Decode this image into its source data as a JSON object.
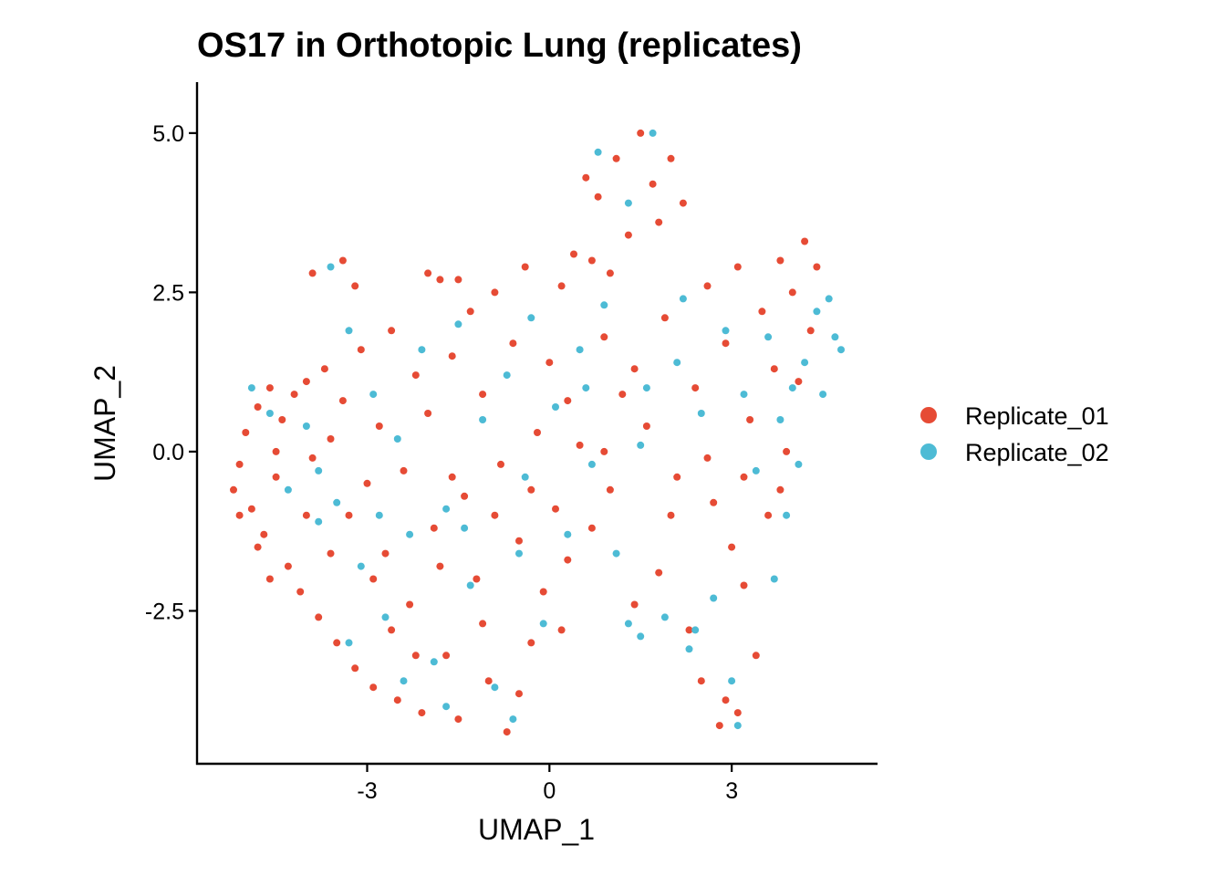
{
  "chart_data": {
    "type": "scatter",
    "title": "OS17 in Orthotopic Lung (replicates)",
    "xlabel": "UMAP_1",
    "ylabel": "UMAP_2",
    "xlim": [
      -5.8,
      5.4
    ],
    "ylim": [
      -4.9,
      5.8
    ],
    "x_ticks": [
      {
        "value": -3,
        "label": "-3"
      },
      {
        "value": 0,
        "label": "0"
      },
      {
        "value": 3,
        "label": "3"
      }
    ],
    "y_ticks": [
      {
        "value": -2.5,
        "label": "-2.5"
      },
      {
        "value": 0,
        "label": "0.0"
      },
      {
        "value": 2.5,
        "label": "2.5"
      },
      {
        "value": 5,
        "label": "5.0"
      }
    ],
    "grid": false,
    "legend_position": "right",
    "series": [
      {
        "name": "Replicate_01",
        "color": "#E64B35",
        "points": [
          [
            -5.2,
            -0.6
          ],
          [
            -5.1,
            -0.2
          ],
          [
            -5.0,
            0.3
          ],
          [
            -4.9,
            -0.9
          ],
          [
            -4.8,
            0.7
          ],
          [
            -4.7,
            -1.3
          ],
          [
            -4.6,
            1.0
          ],
          [
            -4.5,
            -0.4
          ],
          [
            -4.4,
            0.5
          ],
          [
            -4.3,
            -1.8
          ],
          [
            -4.2,
            0.9
          ],
          [
            -4.1,
            -2.2
          ],
          [
            -4.0,
            1.1
          ],
          [
            -3.9,
            -0.1
          ],
          [
            -3.8,
            -2.6
          ],
          [
            -3.7,
            1.3
          ],
          [
            -3.6,
            0.2
          ],
          [
            -3.5,
            -3.0
          ],
          [
            -3.4,
            0.8
          ],
          [
            -3.3,
            -1.0
          ],
          [
            -3.2,
            -3.4
          ],
          [
            -3.1,
            1.6
          ],
          [
            -3.0,
            -0.5
          ],
          [
            -2.9,
            -3.7
          ],
          [
            -2.8,
            0.4
          ],
          [
            -2.7,
            -1.6
          ],
          [
            -2.6,
            1.9
          ],
          [
            -2.5,
            -3.9
          ],
          [
            -2.4,
            -0.3
          ],
          [
            -2.3,
            -2.4
          ],
          [
            -2.2,
            1.2
          ],
          [
            -2.1,
            -4.1
          ],
          [
            -2.0,
            0.6
          ],
          [
            -1.9,
            -1.2
          ],
          [
            -1.8,
            2.7
          ],
          [
            -1.7,
            -3.2
          ],
          [
            -1.6,
            1.5
          ],
          [
            -1.5,
            -4.2
          ],
          [
            -1.4,
            -0.7
          ],
          [
            -1.3,
            2.2
          ],
          [
            -1.2,
            -2.0
          ],
          [
            -1.1,
            0.9
          ],
          [
            -1.0,
            -3.6
          ],
          [
            -0.9,
            2.5
          ],
          [
            -0.8,
            -0.2
          ],
          [
            -0.7,
            -4.4
          ],
          [
            -0.6,
            1.7
          ],
          [
            -0.5,
            -1.4
          ],
          [
            -0.4,
            2.9
          ],
          [
            -0.3,
            -3.0
          ],
          [
            -0.2,
            0.3
          ],
          [
            -0.1,
            -2.2
          ],
          [
            0.0,
            1.4
          ],
          [
            0.1,
            -0.9
          ],
          [
            0.2,
            2.6
          ],
          [
            0.3,
            -1.7
          ],
          [
            0.4,
            3.1
          ],
          [
            0.5,
            0.1
          ],
          [
            0.6,
            4.3
          ],
          [
            0.7,
            -1.2
          ],
          [
            0.8,
            4.0
          ],
          [
            0.9,
            1.8
          ],
          [
            1.0,
            -0.6
          ],
          [
            1.1,
            4.6
          ],
          [
            1.2,
            0.9
          ],
          [
            1.3,
            3.4
          ],
          [
            1.4,
            -2.4
          ],
          [
            1.5,
            5.0
          ],
          [
            1.6,
            0.4
          ],
          [
            1.7,
            4.2
          ],
          [
            1.8,
            -1.9
          ],
          [
            1.9,
            2.1
          ],
          [
            2.0,
            4.6
          ],
          [
            2.1,
            -0.4
          ],
          [
            2.2,
            3.9
          ],
          [
            2.3,
            -2.8
          ],
          [
            2.4,
            1.0
          ],
          [
            2.5,
            -3.6
          ],
          [
            2.6,
            2.6
          ],
          [
            2.7,
            -0.8
          ],
          [
            2.8,
            -4.3
          ],
          [
            2.9,
            1.7
          ],
          [
            3.0,
            -1.5
          ],
          [
            3.1,
            2.9
          ],
          [
            3.2,
            -2.1
          ],
          [
            3.3,
            0.5
          ],
          [
            3.4,
            -3.2
          ],
          [
            3.5,
            2.2
          ],
          [
            3.6,
            -1.0
          ],
          [
            3.7,
            1.3
          ],
          [
            3.8,
            3.0
          ],
          [
            3.9,
            0.0
          ],
          [
            4.0,
            2.5
          ],
          [
            4.1,
            1.1
          ],
          [
            4.2,
            3.3
          ],
          [
            4.3,
            1.9
          ],
          [
            4.4,
            2.9
          ],
          [
            -4.5,
            0.0
          ],
          [
            -3.9,
            2.8
          ],
          [
            -3.4,
            3.0
          ],
          [
            -3.2,
            2.6
          ],
          [
            -2.9,
            -2.0
          ],
          [
            -2.2,
            -3.2
          ],
          [
            -1.6,
            -0.4
          ],
          [
            -0.9,
            -1.0
          ],
          [
            -0.3,
            -0.6
          ],
          [
            0.3,
            0.8
          ],
          [
            0.9,
            0.0
          ],
          [
            1.4,
            1.3
          ],
          [
            2.0,
            -1.0
          ],
          [
            2.6,
            -0.1
          ],
          [
            3.2,
            -0.4
          ],
          [
            3.8,
            -0.6
          ],
          [
            -4.0,
            -1.0
          ],
          [
            -3.6,
            -1.6
          ],
          [
            -2.6,
            -2.8
          ],
          [
            -1.8,
            -1.8
          ],
          [
            -1.1,
            -2.7
          ],
          [
            -0.5,
            -3.8
          ],
          [
            0.2,
            -2.8
          ],
          [
            1.0,
            2.8
          ],
          [
            1.8,
            3.6
          ],
          [
            2.9,
            -3.9
          ],
          [
            3.1,
            -4.1
          ],
          [
            -5.1,
            -1.0
          ],
          [
            -4.8,
            -1.5
          ],
          [
            -4.6,
            -2.0
          ],
          [
            -2.0,
            2.8
          ],
          [
            -1.5,
            2.7
          ],
          [
            0.7,
            3.0
          ]
        ]
      },
      {
        "name": "Replicate_02",
        "color": "#4DBBD5",
        "points": [
          [
            -4.9,
            1.0
          ],
          [
            -4.6,
            0.6
          ],
          [
            -4.3,
            -0.6
          ],
          [
            -4.0,
            0.4
          ],
          [
            -3.8,
            -1.1
          ],
          [
            -3.6,
            2.9
          ],
          [
            -3.5,
            -0.8
          ],
          [
            -3.3,
            1.9
          ],
          [
            -3.1,
            -1.8
          ],
          [
            -2.9,
            0.9
          ],
          [
            -2.7,
            -2.6
          ],
          [
            -2.5,
            0.2
          ],
          [
            -2.3,
            -1.3
          ],
          [
            -2.1,
            1.6
          ],
          [
            -1.9,
            -3.3
          ],
          [
            -1.7,
            -0.9
          ],
          [
            -1.5,
            2.0
          ],
          [
            -1.3,
            -2.1
          ],
          [
            -1.1,
            0.5
          ],
          [
            -0.9,
            -3.7
          ],
          [
            -0.7,
            1.2
          ],
          [
            -0.5,
            -1.6
          ],
          [
            -0.3,
            2.1
          ],
          [
            -0.1,
            -2.7
          ],
          [
            0.1,
            0.7
          ],
          [
            0.3,
            -1.3
          ],
          [
            0.5,
            1.6
          ],
          [
            0.7,
            -0.2
          ],
          [
            0.8,
            4.7
          ],
          [
            0.9,
            2.3
          ],
          [
            1.1,
            -1.6
          ],
          [
            1.3,
            3.9
          ],
          [
            1.5,
            0.1
          ],
          [
            1.7,
            5.0
          ],
          [
            1.9,
            -2.6
          ],
          [
            2.1,
            1.4
          ],
          [
            2.3,
            -3.1
          ],
          [
            2.5,
            0.6
          ],
          [
            2.7,
            -2.3
          ],
          [
            2.9,
            1.9
          ],
          [
            3.0,
            -3.6
          ],
          [
            3.1,
            -4.3
          ],
          [
            3.2,
            0.9
          ],
          [
            3.4,
            -0.3
          ],
          [
            3.6,
            1.8
          ],
          [
            3.8,
            0.5
          ],
          [
            4.0,
            1.0
          ],
          [
            4.2,
            1.4
          ],
          [
            4.4,
            2.2
          ],
          [
            4.6,
            2.4
          ],
          [
            4.7,
            1.8
          ],
          [
            4.8,
            1.6
          ],
          [
            4.5,
            0.9
          ],
          [
            4.1,
            -0.2
          ],
          [
            3.9,
            -1.0
          ],
          [
            3.7,
            -2.0
          ],
          [
            2.4,
            -2.8
          ],
          [
            1.5,
            -2.9
          ],
          [
            1.3,
            -2.7
          ],
          [
            -0.6,
            -4.2
          ],
          [
            -1.7,
            -4.0
          ],
          [
            -2.4,
            -3.6
          ],
          [
            -3.3,
            -3.0
          ],
          [
            -3.8,
            -0.3
          ],
          [
            -2.8,
            -1.0
          ],
          [
            -1.4,
            -1.2
          ],
          [
            -0.4,
            -0.4
          ],
          [
            0.6,
            1.0
          ],
          [
            1.6,
            1.0
          ],
          [
            2.2,
            2.4
          ]
        ]
      }
    ]
  }
}
